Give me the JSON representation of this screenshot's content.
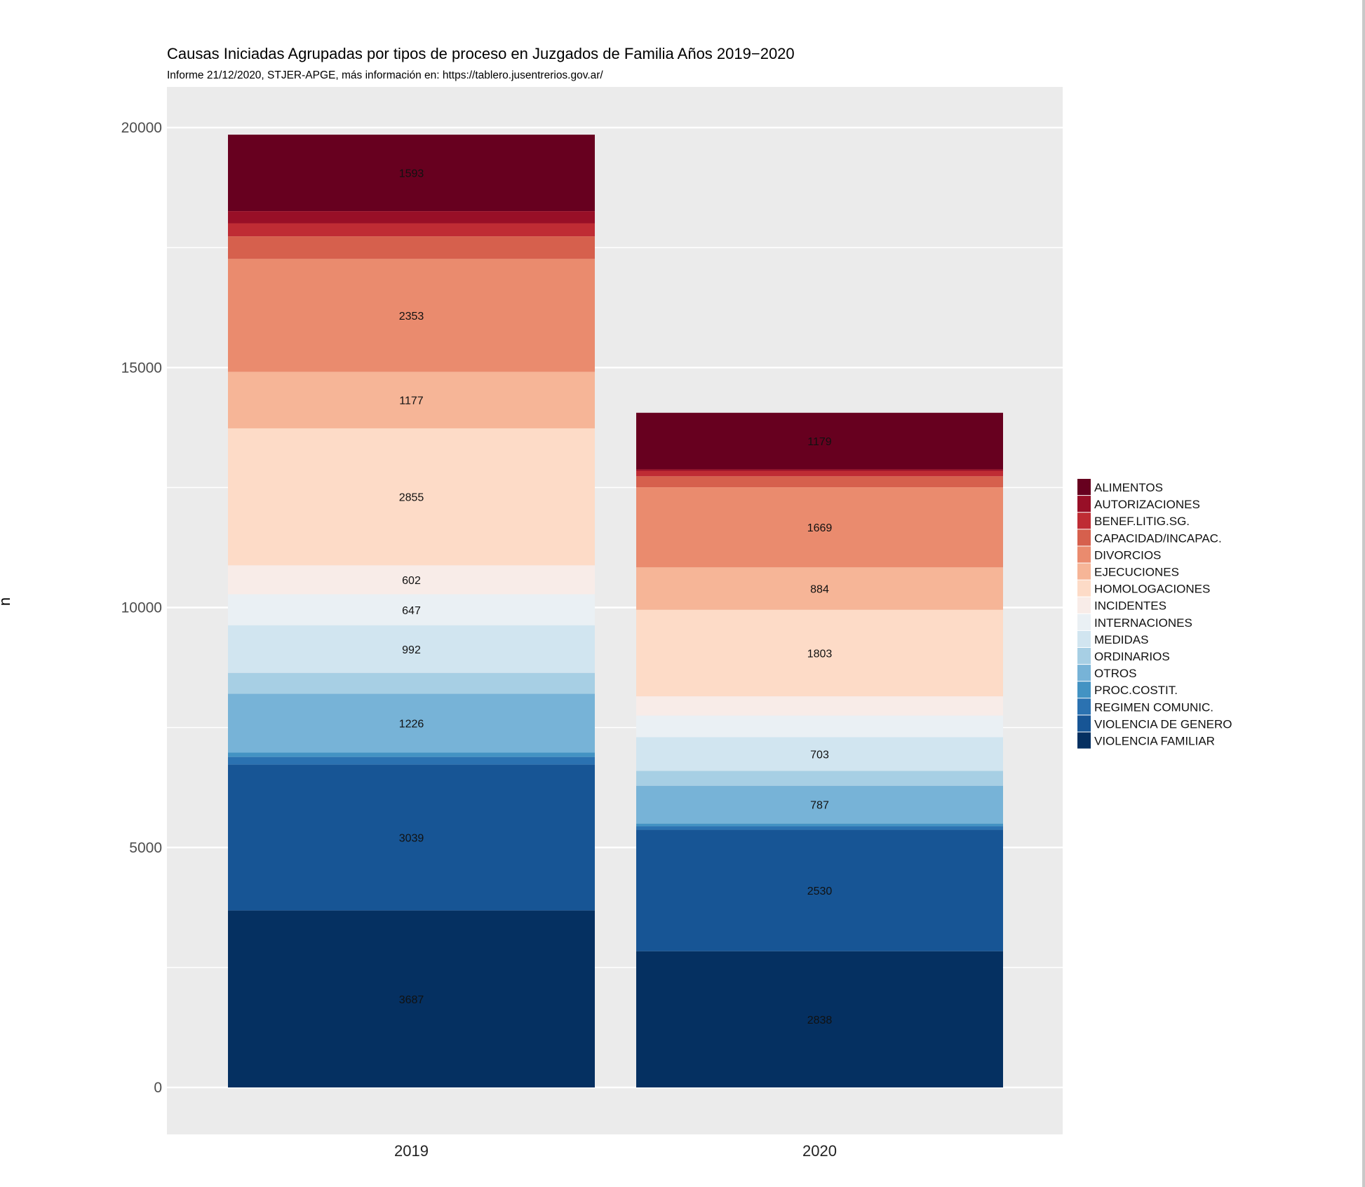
{
  "chart_data": {
    "type": "bar",
    "stacked": true,
    "title": "Causas Iniciadas Agrupadas por tipos de proceso en Juzgados de Familia Años 2019−2020",
    "subtitle": "Informe 21/12/2020, STJER-APGE, más información en: https://tablero.jusentrerios.gov.ar/",
    "xlabel": "",
    "ylabel": "n",
    "ylim": [
      -1000,
      20850
    ],
    "yticks": [
      0,
      5000,
      10000,
      15000,
      20000
    ],
    "ytick_labels": [
      "0",
      "5000",
      "10000",
      "15000",
      "20000"
    ],
    "grid": true,
    "legend_position": "right",
    "categories": [
      "2019",
      "2020"
    ],
    "series": [
      {
        "name": "ALIMENTOS",
        "color": "#67001F",
        "values": [
          1593,
          1179
        ],
        "labels": [
          "1593",
          "1179"
        ]
      },
      {
        "name": "AUTORIZACIONES",
        "color": "#980F27",
        "values": [
          254,
          30
        ],
        "labels": [
          "",
          ""
        ]
      },
      {
        "name": "BENEF.LITIG.SG.",
        "color": "#BF2C34",
        "values": [
          272,
          115
        ],
        "labels": [
          "",
          ""
        ]
      },
      {
        "name": "CAPACIDAD/INCAPAC.",
        "color": "#D6604D",
        "values": [
          471,
          230
        ],
        "labels": [
          "",
          ""
        ]
      },
      {
        "name": "DIVORCIOS",
        "color": "#EA8B6E",
        "values": [
          2353,
          1669
        ],
        "labels": [
          "2353",
          "1669"
        ]
      },
      {
        "name": "EJECUCIONES",
        "color": "#F6B597",
        "values": [
          1177,
          884
        ],
        "labels": [
          "1177",
          "884"
        ]
      },
      {
        "name": "HOMOLOGACIONES",
        "color": "#FDDBC7",
        "values": [
          2855,
          1803
        ],
        "labels": [
          "2855",
          "1803"
        ]
      },
      {
        "name": "INCIDENTES",
        "color": "#F8ECE8",
        "values": [
          602,
          400
        ],
        "labels": [
          "602",
          ""
        ]
      },
      {
        "name": "INTERNACIONES",
        "color": "#EAF0F4",
        "values": [
          647,
          450
        ],
        "labels": [
          "647",
          ""
        ]
      },
      {
        "name": "MEDIDAS",
        "color": "#D1E5F0",
        "values": [
          992,
          703
        ],
        "labels": [
          "992",
          "703"
        ]
      },
      {
        "name": "ORDINARIOS",
        "color": "#A7CFE4",
        "values": [
          435,
          310
        ],
        "labels": [
          "",
          ""
        ]
      },
      {
        "name": "OTROS",
        "color": "#77B3D7",
        "values": [
          1226,
          787
        ],
        "labels": [
          "1226",
          "787"
        ]
      },
      {
        "name": "PROC.COSTIT.",
        "color": "#4393C3",
        "values": [
          90,
          55
        ],
        "labels": [
          "",
          ""
        ]
      },
      {
        "name": "REGIMEN COMUNIC.",
        "color": "#2B72B1",
        "values": [
          160,
          75
        ],
        "labels": [
          "",
          ""
        ]
      },
      {
        "name": "VIOLENCIA DE GENERO",
        "color": "#175595",
        "values": [
          3039,
          2530
        ],
        "labels": [
          "3039",
          "2530"
        ]
      },
      {
        "name": "VIOLENCIA FAMILIAR",
        "color": "#053061",
        "values": [
          3687,
          2838
        ],
        "labels": [
          "3687",
          "2838"
        ]
      }
    ],
    "panel_background": "#EBEBEB",
    "gridline_color": "#FFFFFF"
  }
}
